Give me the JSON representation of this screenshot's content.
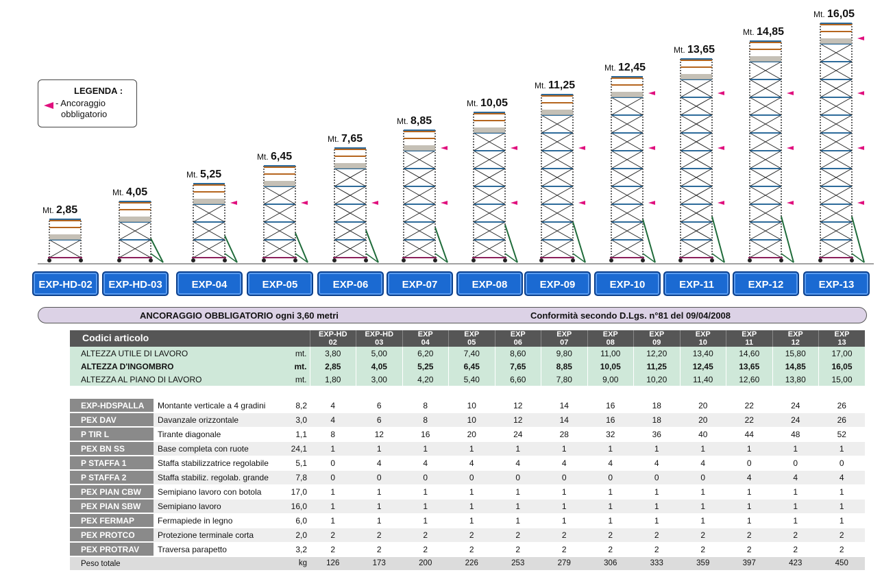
{
  "legend": {
    "title": "LEGENDA :",
    "line1": "- Ancoraggio",
    "line2": "obbligatorio"
  },
  "height_prefix": "Mt.",
  "towers": [
    {
      "height": "2,85",
      "model": "EXP-HD-02",
      "levels": 1,
      "anchors": 0,
      "stab": false
    },
    {
      "height": "4,05",
      "model": "EXP-HD-03",
      "levels": 2,
      "anchors": 0,
      "stab": true
    },
    {
      "height": "5,25",
      "model": "EXP-04",
      "levels": 3,
      "anchors": 1,
      "stab": true
    },
    {
      "height": "6,45",
      "model": "EXP-05",
      "levels": 4,
      "anchors": 1,
      "stab": true
    },
    {
      "height": "7,65",
      "model": "EXP-06",
      "levels": 5,
      "anchors": 1,
      "stab": true
    },
    {
      "height": "8,85",
      "model": "EXP-07",
      "levels": 6,
      "anchors": 2,
      "stab": true
    },
    {
      "height": "10,05",
      "model": "EXP-08",
      "levels": 7,
      "anchors": 2,
      "stab": true
    },
    {
      "height": "11,25",
      "model": "EXP-09",
      "levels": 8,
      "anchors": 2,
      "stab": true
    },
    {
      "height": "12,45",
      "model": "EXP-10",
      "levels": 9,
      "anchors": 3,
      "stab": true
    },
    {
      "height": "13,65",
      "model": "EXP-11",
      "levels": 10,
      "anchors": 3,
      "stab": true
    },
    {
      "height": "14,85",
      "model": "EXP-12",
      "levels": 11,
      "anchors": 3,
      "stab": true
    },
    {
      "height": "16,05",
      "model": "EXP-13",
      "levels": 12,
      "anchors": 4,
      "stab": true
    }
  ],
  "banner": {
    "left": "ANCORAGGIO OBBLIGATORIO  ogni 3,60 metri",
    "right": "Conformità secondo D.Lgs. n°81 del 09/04/2008"
  },
  "table": {
    "title": "Codici articolo",
    "columns": [
      {
        "l1": "EXP-HD",
        "l2": "02"
      },
      {
        "l1": "EXP-HD",
        "l2": "03"
      },
      {
        "l1": "EXP",
        "l2": "04"
      },
      {
        "l1": "EXP",
        "l2": "05"
      },
      {
        "l1": "EXP",
        "l2": "06"
      },
      {
        "l1": "EXP",
        "l2": "07"
      },
      {
        "l1": "EXP",
        "l2": "08"
      },
      {
        "l1": "EXP",
        "l2": "09"
      },
      {
        "l1": "EXP",
        "l2": "10"
      },
      {
        "l1": "EXP",
        "l2": "11"
      },
      {
        "l1": "EXP",
        "l2": "12"
      },
      {
        "l1": "EXP",
        "l2": "13"
      }
    ],
    "heights": [
      {
        "label": "ALTEZZA UTILE DI LAVORO",
        "unit": "mt.",
        "bold": false,
        "values": [
          "3,80",
          "5,00",
          "6,20",
          "7,40",
          "8,60",
          "9,80",
          "11,00",
          "12,20",
          "13,40",
          "14,60",
          "15,80",
          "17,00"
        ]
      },
      {
        "label": "ALTEZZA D'INGOMBRO",
        "unit": "mt.",
        "bold": true,
        "values": [
          "2,85",
          "4,05",
          "5,25",
          "6,45",
          "7,65",
          "8,85",
          "10,05",
          "11,25",
          "12,45",
          "13,65",
          "14,85",
          "16,05"
        ]
      },
      {
        "label": "ALTEZZA AL PIANO DI LAVORO",
        "unit": "mt.",
        "bold": false,
        "values": [
          "1,80",
          "3,00",
          "4,20",
          "5,40",
          "6,60",
          "7,80",
          "9,00",
          "10,20",
          "11,40",
          "12,60",
          "13,80",
          "15,00"
        ]
      }
    ],
    "items": [
      {
        "code": "EXP-HDSPALLA",
        "desc": "Montante verticale a 4 gradini",
        "weight": "8,2",
        "values": [
          "4",
          "6",
          "8",
          "10",
          "12",
          "14",
          "16",
          "18",
          "20",
          "22",
          "24",
          "26"
        ]
      },
      {
        "code": "PEX DAV",
        "desc": "Davanzale orizzontale",
        "weight": "3,0",
        "values": [
          "4",
          "6",
          "8",
          "10",
          "12",
          "14",
          "16",
          "18",
          "20",
          "22",
          "24",
          "26"
        ]
      },
      {
        "code": "P TIR L",
        "desc": "Tirante diagonale",
        "weight": "1,1",
        "values": [
          "8",
          "12",
          "16",
          "20",
          "24",
          "28",
          "32",
          "36",
          "40",
          "44",
          "48",
          "52"
        ]
      },
      {
        "code": "PEX BN SS",
        "desc": "Base completa con ruote",
        "weight": "24,1",
        "values": [
          "1",
          "1",
          "1",
          "1",
          "1",
          "1",
          "1",
          "1",
          "1",
          "1",
          "1",
          "1"
        ]
      },
      {
        "code": "P STAFFA 1",
        "desc": "Staffa stabilizzatrice regolabile",
        "weight": "5,1",
        "values": [
          "0",
          "4",
          "4",
          "4",
          "4",
          "4",
          "4",
          "4",
          "4",
          "0",
          "0",
          "0"
        ]
      },
      {
        "code": "P STAFFA 2",
        "desc": "Staffa stabiliz. regolab. grande",
        "weight": "7,8",
        "values": [
          "0",
          "0",
          "0",
          "0",
          "0",
          "0",
          "0",
          "0",
          "0",
          "4",
          "4",
          "4"
        ]
      },
      {
        "code": "PEX PIAN CBW",
        "desc": "Semipiano lavoro con botola",
        "weight": "17,0",
        "values": [
          "1",
          "1",
          "1",
          "1",
          "1",
          "1",
          "1",
          "1",
          "1",
          "1",
          "1",
          "1"
        ]
      },
      {
        "code": "PEX PIAN SBW",
        "desc": "Semipiano lavoro",
        "weight": "16,0",
        "values": [
          "1",
          "1",
          "1",
          "1",
          "1",
          "1",
          "1",
          "1",
          "1",
          "1",
          "1",
          "1"
        ]
      },
      {
        "code": "PEX FERMAP",
        "desc": "Fermapiede in legno",
        "weight": "6,0",
        "values": [
          "1",
          "1",
          "1",
          "1",
          "1",
          "1",
          "1",
          "1",
          "1",
          "1",
          "1",
          "1"
        ]
      },
      {
        "code": "PEX PROTCO",
        "desc": "Protezione terminale corta",
        "weight": "2,0",
        "values": [
          "2",
          "2",
          "2",
          "2",
          "2",
          "2",
          "2",
          "2",
          "2",
          "2",
          "2",
          "2"
        ]
      },
      {
        "code": "PEX PROTRAV",
        "desc": "Traversa parapetto",
        "weight": "3,2",
        "values": [
          "2",
          "2",
          "2",
          "2",
          "2",
          "2",
          "2",
          "2",
          "2",
          "2",
          "2",
          "2"
        ]
      }
    ],
    "total": {
      "label": "Peso totale",
      "unit": "kg",
      "values": [
        "126",
        "173",
        "200",
        "226",
        "253",
        "279",
        "306",
        "333",
        "359",
        "397",
        "423",
        "450"
      ]
    }
  },
  "colors": {
    "button_blue": "#1b6ad2",
    "anchor_pink": "#e0107e",
    "header_grey": "#565656",
    "heights_green": "#cfe8d9",
    "code_grey": "#8a8a8a"
  }
}
